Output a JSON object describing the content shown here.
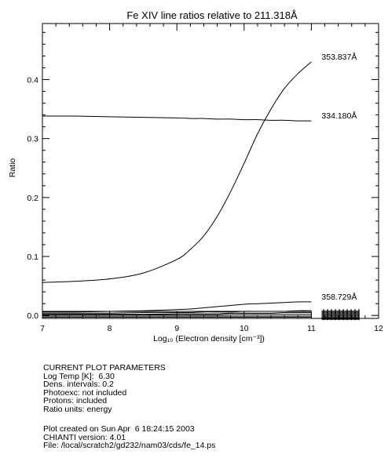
{
  "chart_data": {
    "type": "line",
    "title": "Fe XIV line ratios relative to 211.318Å",
    "xlabel": "Log₁₀ (Electron density [cm⁻³])",
    "ylabel": "Ratio",
    "xlim": [
      7,
      12
    ],
    "ylim": [
      -0.005,
      0.495
    ],
    "x_ticks": [
      7,
      8,
      9,
      10,
      11,
      12
    ],
    "y_ticks": [
      0.0,
      0.1,
      0.2,
      0.3,
      0.4
    ],
    "x_tick_labels": [
      "7",
      "8",
      "9",
      "10",
      "11",
      "12"
    ],
    "y_tick_labels": [
      "0.0",
      "0.1",
      "0.2",
      "0.3",
      "0.4"
    ],
    "grid": false,
    "x": [
      7.0,
      7.5,
      8.0,
      8.5,
      9.0,
      9.2,
      9.4,
      9.6,
      9.8,
      10.0,
      10.2,
      10.4,
      10.6,
      10.8,
      11.0
    ],
    "series": [
      {
        "name": "353.837Å",
        "values": [
          0.056,
          0.058,
          0.062,
          0.072,
          0.095,
          0.112,
          0.135,
          0.168,
          0.21,
          0.258,
          0.308,
          0.35,
          0.385,
          0.41,
          0.43
        ]
      },
      {
        "name": "334.180Å",
        "values": [
          0.338,
          0.338,
          0.337,
          0.336,
          0.335,
          0.334,
          0.334,
          0.333,
          0.333,
          0.332,
          0.332,
          0.331,
          0.331,
          0.33,
          0.33
        ]
      },
      {
        "name": "358.729Å",
        "values": [
          0.006,
          0.006,
          0.007,
          0.008,
          0.01,
          0.011,
          0.013,
          0.015,
          0.017,
          0.019,
          0.02,
          0.021,
          0.022,
          0.023,
          0.023
        ]
      },
      {
        "name": "",
        "values": [
          0.007,
          0.007,
          0.007,
          0.007,
          0.007,
          0.007,
          0.007,
          0.007,
          0.007,
          0.007,
          0.007,
          0.007,
          0.007,
          0.007,
          0.007
        ]
      },
      {
        "name": "",
        "values": [
          0.004,
          0.004,
          0.004,
          0.005,
          0.005,
          0.005,
          0.006,
          0.006,
          0.006,
          0.007,
          0.007,
          0.007,
          0.007,
          0.008,
          0.008
        ]
      },
      {
        "name": "",
        "values": [
          0.002,
          0.002,
          0.002,
          0.002,
          0.003,
          0.003,
          0.003,
          0.003,
          0.004,
          0.004,
          0.004,
          0.004,
          0.005,
          0.005,
          0.005
        ]
      },
      {
        "name": "",
        "values": [
          0.001,
          0.001,
          0.001,
          0.001,
          0.001,
          0.001,
          0.001,
          0.001,
          0.002,
          0.002,
          0.002,
          0.002,
          0.002,
          0.002,
          0.002
        ]
      },
      {
        "name": "",
        "values": [
          -0.001,
          -0.001,
          -0.001,
          -0.001,
          -0.001,
          -0.001,
          -0.001,
          -0.001,
          -0.001,
          -0.001,
          -0.001,
          -0.001,
          -0.001,
          -0.001,
          -0.001
        ]
      },
      {
        "name": "",
        "values": [
          -0.003,
          -0.003,
          -0.003,
          -0.003,
          -0.003,
          -0.003,
          -0.003,
          -0.003,
          -0.003,
          -0.003,
          -0.003,
          -0.003,
          -0.003,
          -0.003,
          -0.003
        ]
      }
    ]
  },
  "parameters": {
    "heading": "CURRENT PLOT PARAMETERS",
    "lines": [
      "Log Temp [K]:  6.30",
      "Dens. intervals: 0.2",
      "Photoexc: not included",
      "Protons: included",
      "Ratio units: energy"
    ]
  },
  "footer": {
    "lines": [
      "Plot created on Sun Apr  6 18:24:15 2003",
      "CHIANTI version: 4.01",
      "File: /local/scratch2/gd232/nam03/cds/fe_14.ps"
    ]
  }
}
